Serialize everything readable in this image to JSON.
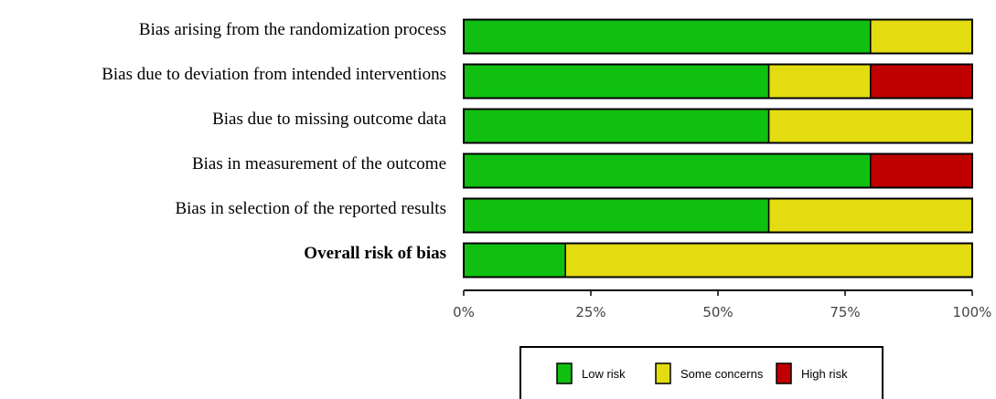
{
  "chart_data": {
    "type": "stacked-bar-horizontal",
    "categories": [
      "Bias arising from the randomization process",
      "Bias due to deviation from intended interventions",
      "Bias due to missing outcome data",
      "Bias in measurement of the outcome",
      "Bias in selection of the reported results",
      "Overall risk of bias"
    ],
    "series": [
      {
        "name": "Low risk",
        "color": "#10c010",
        "values": [
          80,
          60,
          60,
          80,
          60,
          20
        ]
      },
      {
        "name": "Some concerns",
        "color": "#e2dc10",
        "values": [
          20,
          20,
          40,
          0,
          40,
          80
        ]
      },
      {
        "name": "High risk",
        "color": "#c00000",
        "values": [
          0,
          20,
          0,
          20,
          0,
          0
        ]
      }
    ],
    "xlim": [
      0,
      100
    ],
    "xticks": [
      {
        "value": 0,
        "label": "0%"
      },
      {
        "value": 25,
        "label": "25%"
      },
      {
        "value": 50,
        "label": "50%"
      },
      {
        "value": 75,
        "label": "75%"
      },
      {
        "value": 100,
        "label": "100%"
      }
    ]
  }
}
